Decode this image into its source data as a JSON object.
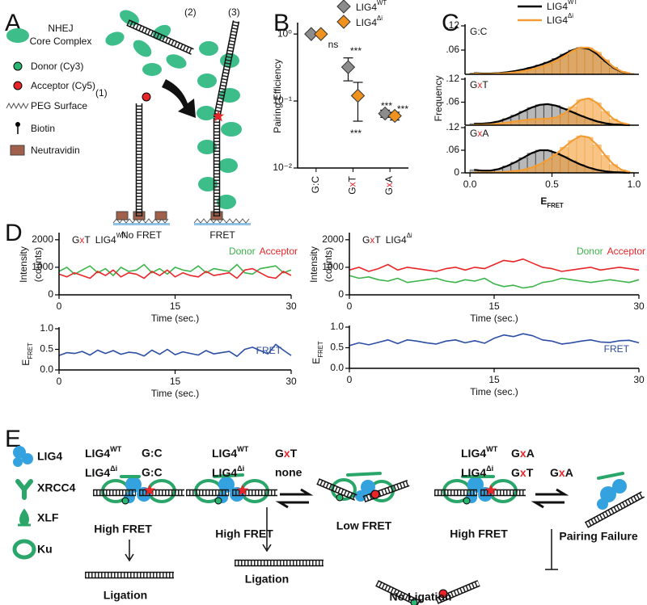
{
  "panel_letters": {
    "a": "A",
    "b": "B",
    "c": "C",
    "d": "D",
    "e": "E"
  },
  "panel_a": {
    "complex": [
      "NHEJ",
      "Core Complex"
    ],
    "legend": [
      "Donor (Cy3)",
      "Acceptor (Cy5)",
      "PEG Surface",
      "Biotin",
      "Neutravidin"
    ],
    "steps": [
      "(1)",
      "(2)",
      "(3)"
    ],
    "states": [
      "No FRET",
      "FRET"
    ]
  },
  "chart_data": [
    {
      "type": "scatter",
      "y_label": "Pairing Efficiency",
      "categories": [
        "G:C",
        "GxT",
        "GxA"
      ],
      "series": [
        {
          "name": "LIG4",
          "name_sup": "WT",
          "color": "#8c8c8c",
          "values": [
            1.0,
            0.32,
            0.065
          ],
          "errors": [
            null,
            0.12,
            0.008
          ]
        },
        {
          "name": "LIG4",
          "name_sup": "Δi",
          "color": "#f0921e",
          "values": [
            1.0,
            0.12,
            0.06
          ],
          "errors": [
            null,
            0.07,
            0.008
          ]
        }
      ],
      "log_y": true,
      "ylim": [
        0.01,
        1.4
      ],
      "yticks": [
        {
          "value": 0.01,
          "label": "10⁻²"
        },
        {
          "value": 0.1,
          "label": "10⁻¹"
        },
        {
          "value": 1,
          "label": "10⁰"
        }
      ],
      "annotations": [
        "ns",
        "***",
        "***",
        "***",
        "***"
      ]
    },
    {
      "type": "histogram",
      "title": "G:C",
      "y_label": "Frequency",
      "bins": [
        0,
        0.05,
        0.1,
        0.15,
        0.2,
        0.25,
        0.3,
        0.35,
        0.4,
        0.45,
        0.5,
        0.55,
        0.6,
        0.65,
        0.7,
        0.75,
        0.8,
        0.85,
        0.9,
        0.95,
        1.0
      ],
      "xlim": [
        -0.03,
        1.03
      ],
      "ylim": [
        0,
        0.12
      ],
      "yticks": [
        {
          "value": 0.06,
          "label": ".06"
        },
        {
          "value": 0.12,
          "label": ".12"
        }
      ],
      "series": [
        {
          "name": "LIG4",
          "name_sup": "WT",
          "color": "#000000",
          "values": [
            0.003,
            0.002,
            0.002,
            0.003,
            0.005,
            0.008,
            0.012,
            0.017,
            0.023,
            0.03,
            0.039,
            0.05,
            0.06,
            0.066,
            0.063,
            0.05,
            0.032,
            0.016,
            0.006,
            0.002
          ]
        },
        {
          "name": "LIG4",
          "name_sup": "Δi",
          "color": "#f39c33",
          "values": [
            0.002,
            0.001,
            0.001,
            0.002,
            0.003,
            0.005,
            0.008,
            0.012,
            0.017,
            0.024,
            0.033,
            0.045,
            0.058,
            0.066,
            0.066,
            0.055,
            0.036,
            0.018,
            0.007,
            0.002
          ]
        }
      ]
    },
    {
      "type": "histogram",
      "title": "GxT",
      "bins": [
        0,
        0.05,
        0.1,
        0.15,
        0.2,
        0.25,
        0.3,
        0.35,
        0.4,
        0.45,
        0.5,
        0.55,
        0.6,
        0.65,
        0.7,
        0.75,
        0.8,
        0.85,
        0.9,
        0.95,
        1.0
      ],
      "xlim": [
        -0.03,
        1.03
      ],
      "ylim": [
        0,
        0.12
      ],
      "yticks": [
        {
          "value": 0.06,
          "label": ".06"
        },
        {
          "value": 0.12,
          "label": ".12"
        }
      ],
      "series": [
        {
          "color": "#000000",
          "values": [
            0.004,
            0.004,
            0.006,
            0.01,
            0.017,
            0.026,
            0.036,
            0.046,
            0.053,
            0.055,
            0.051,
            0.043,
            0.034,
            0.025,
            0.017,
            0.01,
            0.005,
            0.002,
            0.001,
            0.0
          ]
        },
        {
          "color": "#f39c33",
          "values": [
            0.001,
            0.001,
            0.002,
            0.004,
            0.007,
            0.01,
            0.013,
            0.015,
            0.016,
            0.017,
            0.02,
            0.03,
            0.048,
            0.066,
            0.07,
            0.058,
            0.036,
            0.016,
            0.006,
            0.001
          ]
        }
      ]
    },
    {
      "type": "histogram",
      "title": "GxA",
      "x_label": {
        "text": "E",
        "sub": "FRET"
      },
      "bins": [
        0,
        0.05,
        0.1,
        0.15,
        0.2,
        0.25,
        0.3,
        0.35,
        0.4,
        0.45,
        0.5,
        0.55,
        0.6,
        0.65,
        0.7,
        0.75,
        0.8,
        0.85,
        0.9,
        0.95,
        1.0
      ],
      "xlim": [
        -0.03,
        1.03
      ],
      "ylim": [
        0,
        0.12
      ],
      "xticks": [
        {
          "value": 0,
          "label": "0.0"
        },
        {
          "value": 0.5,
          "label": "0.5"
        },
        {
          "value": 1,
          "label": "1.0"
        }
      ],
      "yticks": [
        0,
        {
          "value": 0.06,
          "label": ".06"
        },
        {
          "value": 0.12,
          "label": ".12"
        }
      ],
      "series": [
        {
          "color": "#000000",
          "values": [
            0.008,
            0.006,
            0.006,
            0.01,
            0.018,
            0.028,
            0.04,
            0.052,
            0.06,
            0.06,
            0.053,
            0.043,
            0.032,
            0.022,
            0.014,
            0.008,
            0.004,
            0.002,
            0.001,
            0.0
          ]
        },
        {
          "color": "#f39c33",
          "values": [
            0.001,
            0.001,
            0.001,
            0.002,
            0.003,
            0.005,
            0.008,
            0.014,
            0.022,
            0.034,
            0.05,
            0.068,
            0.086,
            0.098,
            0.094,
            0.074,
            0.046,
            0.022,
            0.008,
            0.002
          ]
        }
      ]
    },
    {
      "type": "line",
      "title": "GxT",
      "title_name": "LIG4",
      "title_sup": "WT",
      "x": [
        0,
        1,
        2,
        3,
        4,
        5,
        6,
        7,
        8,
        9,
        10,
        11,
        12,
        13,
        14,
        15,
        16,
        17,
        18,
        19,
        20,
        21,
        22,
        23,
        24,
        25,
        26,
        27,
        28,
        29,
        30
      ],
      "xlim": [
        0,
        30
      ],
      "xticks": [
        0,
        15,
        30
      ],
      "x_label": "Time (sec.)",
      "y_label": [
        "Intensity",
        "(counts)"
      ],
      "ylim": [
        0,
        2200
      ],
      "yticks": [
        0,
        1000,
        2000
      ],
      "series": [
        {
          "name": "Donor",
          "color": "#3cb44b",
          "values": [
            850,
            1000,
            750,
            900,
            1050,
            800,
            950,
            700,
            1000,
            850,
            900,
            1100,
            800,
            950,
            750,
            1000,
            900,
            850,
            1050,
            800,
            950,
            900,
            850,
            1100,
            800,
            750,
            950,
            1000,
            1050,
            800,
            900
          ]
        },
        {
          "name": "Acceptor",
          "color": "#e8262a",
          "values": [
            750,
            650,
            800,
            700,
            600,
            850,
            700,
            900,
            650,
            800,
            750,
            600,
            850,
            700,
            900,
            650,
            800,
            700,
            650,
            850,
            700,
            750,
            800,
            600,
            900,
            950,
            800,
            650,
            600,
            850,
            700
          ]
        }
      ]
    },
    {
      "type": "line",
      "x": [
        0,
        1,
        2,
        3,
        4,
        5,
        6,
        7,
        8,
        9,
        10,
        11,
        12,
        13,
        14,
        15,
        16,
        17,
        18,
        19,
        20,
        21,
        22,
        23,
        24,
        25,
        26,
        27,
        28,
        29,
        30
      ],
      "xlim": [
        0,
        30
      ],
      "xticks": [
        0,
        15,
        30
      ],
      "x_label": "Time (sec.)",
      "y_label": {
        "text": "E",
        "sub": "FRET"
      },
      "ylim": [
        0,
        1.0
      ],
      "yticks": [
        {
          "value": 0,
          "label": "0.0"
        },
        0.5,
        {
          "value": 1,
          "label": "1.0"
        }
      ],
      "series": [
        {
          "name": "FRET",
          "color": "#2c4ea3",
          "values": [
            0.35,
            0.42,
            0.4,
            0.45,
            0.36,
            0.48,
            0.4,
            0.47,
            0.38,
            0.43,
            0.41,
            0.34,
            0.48,
            0.38,
            0.5,
            0.37,
            0.44,
            0.4,
            0.36,
            0.47,
            0.39,
            0.42,
            0.45,
            0.33,
            0.5,
            0.55,
            0.47,
            0.39,
            0.62,
            0.48,
            0.35
          ]
        }
      ]
    },
    {
      "type": "line",
      "title": "GxT",
      "title_name": "LIG4",
      "title_sup": "Δi",
      "x": [
        0,
        1,
        2,
        3,
        4,
        5,
        6,
        7,
        8,
        9,
        10,
        11,
        12,
        13,
        14,
        15,
        16,
        17,
        18,
        19,
        20,
        21,
        22,
        23,
        24,
        25,
        26,
        27,
        28,
        29,
        30
      ],
      "xlim": [
        0,
        30
      ],
      "xticks": [
        0,
        15,
        30
      ],
      "x_label": "Time (sec.)",
      "y_label": [
        "Intensity",
        "(counts)"
      ],
      "ylim": [
        0,
        2200
      ],
      "yticks": [
        0,
        1000,
        2000
      ],
      "series": [
        {
          "name": "Donor",
          "color": "#3cb44b",
          "values": [
            700,
            600,
            650,
            550,
            500,
            600,
            450,
            500,
            550,
            600,
            500,
            450,
            550,
            500,
            600,
            400,
            300,
            350,
            250,
            300,
            450,
            500,
            600,
            550,
            500,
            450,
            500,
            550,
            500,
            450,
            550
          ]
        },
        {
          "name": "Acceptor",
          "color": "#e8262a",
          "values": [
            900,
            1000,
            850,
            950,
            1100,
            900,
            1000,
            950,
            900,
            850,
            950,
            1000,
            900,
            1000,
            950,
            1100,
            1250,
            1200,
            1300,
            1150,
            1000,
            950,
            850,
            900,
            950,
            1000,
            900,
            950,
            1000,
            950,
            900
          ]
        }
      ]
    },
    {
      "type": "line",
      "x": [
        0,
        1,
        2,
        3,
        4,
        5,
        6,
        7,
        8,
        9,
        10,
        11,
        12,
        13,
        14,
        15,
        16,
        17,
        18,
        19,
        20,
        21,
        22,
        23,
        24,
        25,
        26,
        27,
        28,
        29,
        30
      ],
      "xlim": [
        0,
        30
      ],
      "xticks": [
        0,
        15,
        30
      ],
      "x_label": "Time (sec.)",
      "y_label": {
        "text": "E",
        "sub": "FRET"
      },
      "ylim": [
        0,
        1.0
      ],
      "yticks": [
        {
          "value": 0,
          "label": "0.0"
        },
        0.5,
        {
          "value": 1,
          "label": "1.0"
        }
      ],
      "series": [
        {
          "name": "FRET",
          "color": "#2c4ea3",
          "values": [
            0.55,
            0.62,
            0.57,
            0.63,
            0.69,
            0.6,
            0.69,
            0.66,
            0.62,
            0.59,
            0.66,
            0.69,
            0.62,
            0.67,
            0.61,
            0.73,
            0.81,
            0.77,
            0.84,
            0.79,
            0.69,
            0.66,
            0.59,
            0.62,
            0.66,
            0.69,
            0.64,
            0.63,
            0.67,
            0.68,
            0.62
          ]
        }
      ]
    }
  ],
  "panel_e": {
    "legend": [
      "LIG4",
      "XRCC4",
      "XLF",
      "Ku"
    ],
    "conditions": [
      [
        {
          "name": "LIG4",
          "sup": "WT",
          "dna": [
            "G:C"
          ]
        },
        {
          "name": "LIG4",
          "sup": "Δi",
          "dna": [
            "G:C"
          ]
        }
      ],
      [
        {
          "name": "LIG4",
          "sup": "WT",
          "dna": [
            "GxT"
          ]
        },
        {
          "name": "LIG4",
          "sup": "Δi",
          "dna": [
            "none"
          ]
        }
      ],
      [
        {
          "name": "LIG4",
          "sup": "WT",
          "dna": [
            "GxA"
          ]
        },
        {
          "name": "LIG4",
          "sup": "Δi",
          "dna": [
            "GxT",
            "GxA"
          ]
        }
      ]
    ],
    "labels": [
      "High FRET",
      "Ligation",
      "High FRET",
      "Low FRET",
      "Ligation",
      "High FRET",
      "Pairing Failure",
      "No Ligation"
    ]
  }
}
